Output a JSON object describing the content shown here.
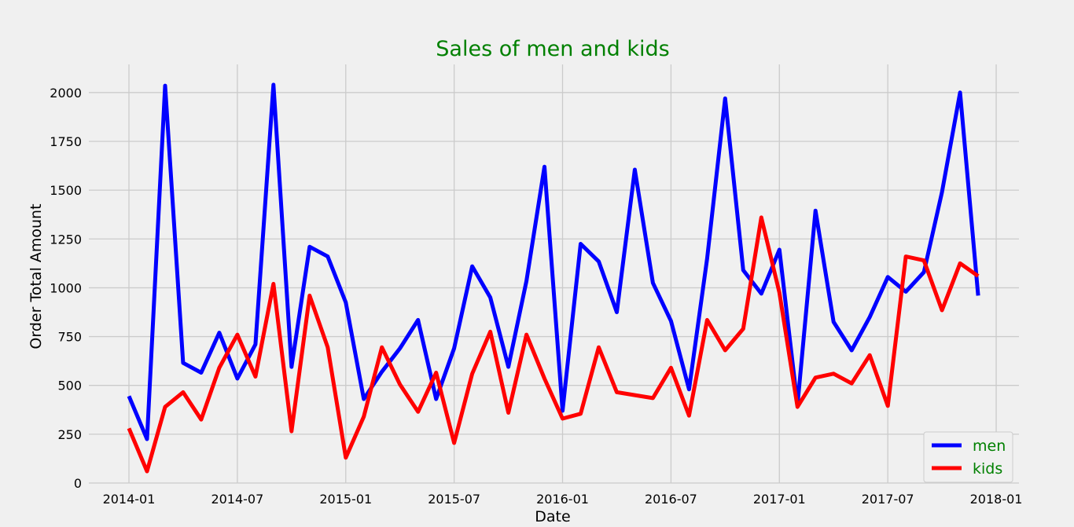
{
  "chart_data": {
    "type": "line",
    "title": "Sales of men and kids",
    "xlabel": "Date",
    "ylabel": "Order Total Amount",
    "x": [
      "2014-01",
      "2014-02",
      "2014-03",
      "2014-04",
      "2014-05",
      "2014-06",
      "2014-07",
      "2014-08",
      "2014-09",
      "2014-10",
      "2014-11",
      "2014-12",
      "2015-01",
      "2015-02",
      "2015-03",
      "2015-04",
      "2015-05",
      "2015-06",
      "2015-07",
      "2015-08",
      "2015-09",
      "2015-10",
      "2015-11",
      "2015-12",
      "2016-01",
      "2016-02",
      "2016-03",
      "2016-04",
      "2016-05",
      "2016-06",
      "2016-07",
      "2016-08",
      "2016-09",
      "2016-10",
      "2016-11",
      "2016-12",
      "2017-01",
      "2017-02",
      "2017-03",
      "2017-04",
      "2017-05",
      "2017-06",
      "2017-07",
      "2017-08",
      "2017-09",
      "2017-10",
      "2017-11",
      "2017-12"
    ],
    "series": [
      {
        "name": "men",
        "color": "#0000ff",
        "values": [
          445,
          225,
          2035,
          615,
          565,
          770,
          535,
          710,
          2040,
          595,
          1210,
          1160,
          925,
          430,
          570,
          690,
          835,
          430,
          690,
          1110,
          950,
          595,
          1035,
          1620,
          370,
          1225,
          1135,
          875,
          1605,
          1025,
          830,
          480,
          1150,
          1970,
          1090,
          970,
          1195,
          400,
          1395,
          825,
          680,
          850,
          1055,
          980,
          1080,
          1490,
          2000,
          960
        ]
      },
      {
        "name": "kids",
        "color": "#ff0000",
        "values": [
          280,
          60,
          390,
          465,
          325,
          590,
          760,
          545,
          1020,
          265,
          960,
          695,
          130,
          340,
          695,
          505,
          365,
          565,
          205,
          560,
          775,
          360,
          760,
          535,
          330,
          355,
          695,
          465,
          450,
          435,
          590,
          345,
          835,
          680,
          790,
          1360,
          975,
          390,
          540,
          560,
          510,
          655,
          395,
          1160,
          1140,
          885,
          1125,
          1060
        ]
      }
    ],
    "x_ticks": [
      "2014-01",
      "2014-07",
      "2015-01",
      "2015-07",
      "2016-01",
      "2016-07",
      "2017-01",
      "2017-07",
      "2018-01"
    ],
    "y_ticks": [
      0,
      250,
      500,
      750,
      1000,
      1250,
      1500,
      1750,
      2000
    ],
    "ylim": [
      0,
      2120
    ],
    "grid": true,
    "legend_position": "lower-right"
  }
}
